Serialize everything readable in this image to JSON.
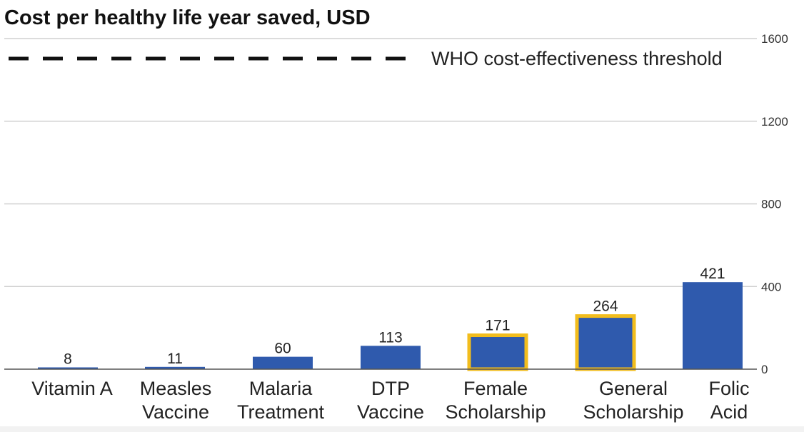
{
  "chart_data": {
    "type": "bar",
    "title": "Cost per healthy life year saved, USD",
    "categories": [
      [
        "Vitamin A"
      ],
      [
        "Measles",
        "Vaccine"
      ],
      [
        "Malaria",
        "Treatment"
      ],
      [
        "DTP",
        "Vaccine"
      ],
      [
        "Female",
        "Scholarship"
      ],
      [
        "General",
        "Scholarship"
      ],
      [
        "Folic",
        "Acid"
      ]
    ],
    "values": [
      8,
      11,
      60,
      113,
      171,
      264,
      421
    ],
    "highlighted": [
      false,
      false,
      false,
      false,
      true,
      true,
      false
    ],
    "yticks": [
      0,
      400,
      800,
      1200,
      1600
    ],
    "ylim": [
      0,
      1600
    ],
    "legend": {
      "label": "WHO cost-effectiveness threshold",
      "style": "dashed"
    },
    "colors": {
      "bar": "#2f5aad",
      "highlight": "#f2bd1d",
      "grid": "#d0d0d0",
      "axis": "#555555"
    }
  }
}
